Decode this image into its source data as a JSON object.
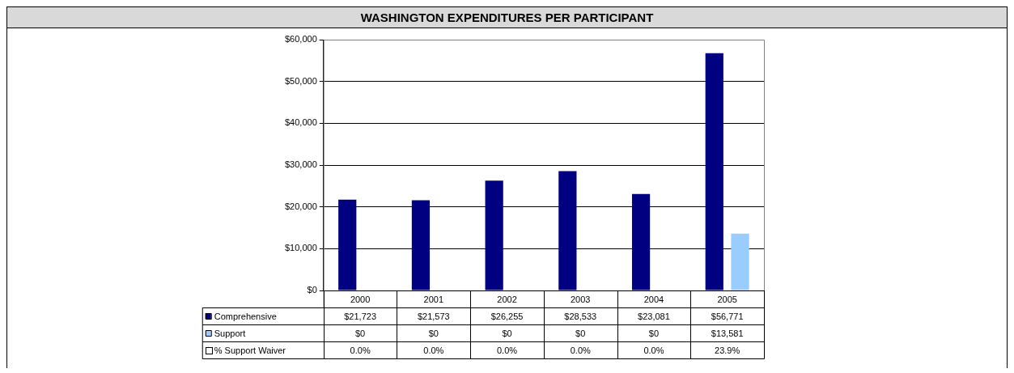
{
  "chart_data": {
    "type": "bar",
    "title": "WASHINGTON EXPENDITURES PER PARTICIPANT",
    "categories": [
      "2000",
      "2001",
      "2002",
      "2003",
      "2004",
      "2005"
    ],
    "series": [
      {
        "name": "Comprehensive",
        "color": "#000080",
        "values": [
          21723,
          21573,
          26255,
          28533,
          23081,
          56771
        ],
        "value_labels": [
          "$21,723",
          "$21,573",
          "$26,255",
          "$28,533",
          "$23,081",
          "$56,771"
        ]
      },
      {
        "name": "Support",
        "color": "#99ccff",
        "values": [
          0,
          0,
          0,
          0,
          0,
          13581
        ],
        "value_labels": [
          "$0",
          "$0",
          "$0",
          "$0",
          "$0",
          "$13,581"
        ]
      }
    ],
    "annotations": [
      "% Support Waiver",
      "0.0%",
      "0.0%",
      "0.0%",
      "0.0%",
      "0.0%",
      "23.9%"
    ],
    "ylim": [
      0,
      60000
    ],
    "yticks": [
      {
        "value": 0,
        "label": "$0"
      },
      {
        "value": 10000,
        "label": "$10,000"
      },
      {
        "value": 20000,
        "label": "$20,000"
      },
      {
        "value": 30000,
        "label": "$30,000"
      },
      {
        "value": 40000,
        "label": "$40,000"
      },
      {
        "value": 50000,
        "label": "$50,000"
      },
      {
        "value": 60000,
        "label": "$60,000"
      }
    ],
    "grid": "y",
    "legend": "bottom left"
  }
}
